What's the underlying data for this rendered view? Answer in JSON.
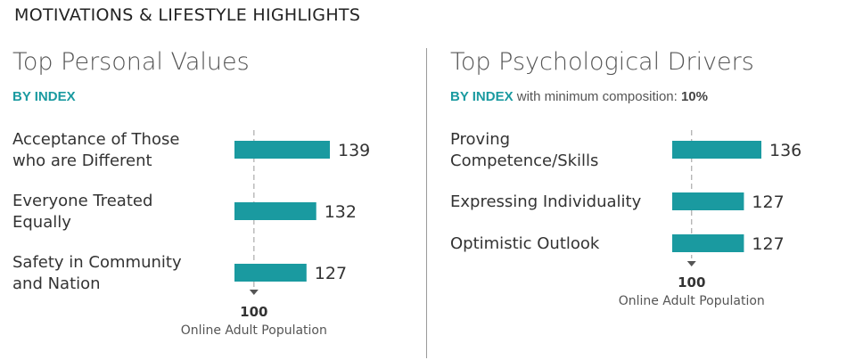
{
  "header": "MOTIVATIONS & LIFESTYLE HIGHLIGHTS",
  "colors": {
    "bar": "#1a9aa0",
    "accent": "#1a9aa0",
    "baseline": "#aaaaaa",
    "marker": "#555555"
  },
  "left": {
    "title": "Top Personal Values",
    "subtitle_index": "BY INDEX",
    "subtitle_rest": "",
    "subtitle_pct": ""
  },
  "right": {
    "title": "Top Psychological Drivers",
    "subtitle_index": "BY INDEX",
    "subtitle_rest": " with minimum composition: ",
    "subtitle_pct": "10%"
  },
  "chart_data": [
    {
      "type": "bar",
      "orientation": "horizontal",
      "title": "Top Personal Values",
      "categories": [
        [
          "Acceptance of Those",
          "who are Different"
        ],
        [
          "Everyone Treated",
          "Equally"
        ],
        [
          "Safety in Community",
          "and Nation"
        ]
      ],
      "values": [
        139,
        132,
        127
      ],
      "baseline": {
        "value": 100,
        "label": "Online Adult Population"
      },
      "xlim": [
        90,
        139
      ]
    },
    {
      "type": "bar",
      "orientation": "horizontal",
      "title": "Top Psychological Drivers",
      "categories": [
        [
          "Proving",
          "Competence/Skills"
        ],
        [
          "Expressing Individuality"
        ],
        [
          "Optimistic Outlook"
        ]
      ],
      "values": [
        136,
        127,
        127
      ],
      "baseline": {
        "value": 100,
        "label": "Online Adult Population"
      },
      "xlim": [
        90,
        136
      ]
    }
  ]
}
